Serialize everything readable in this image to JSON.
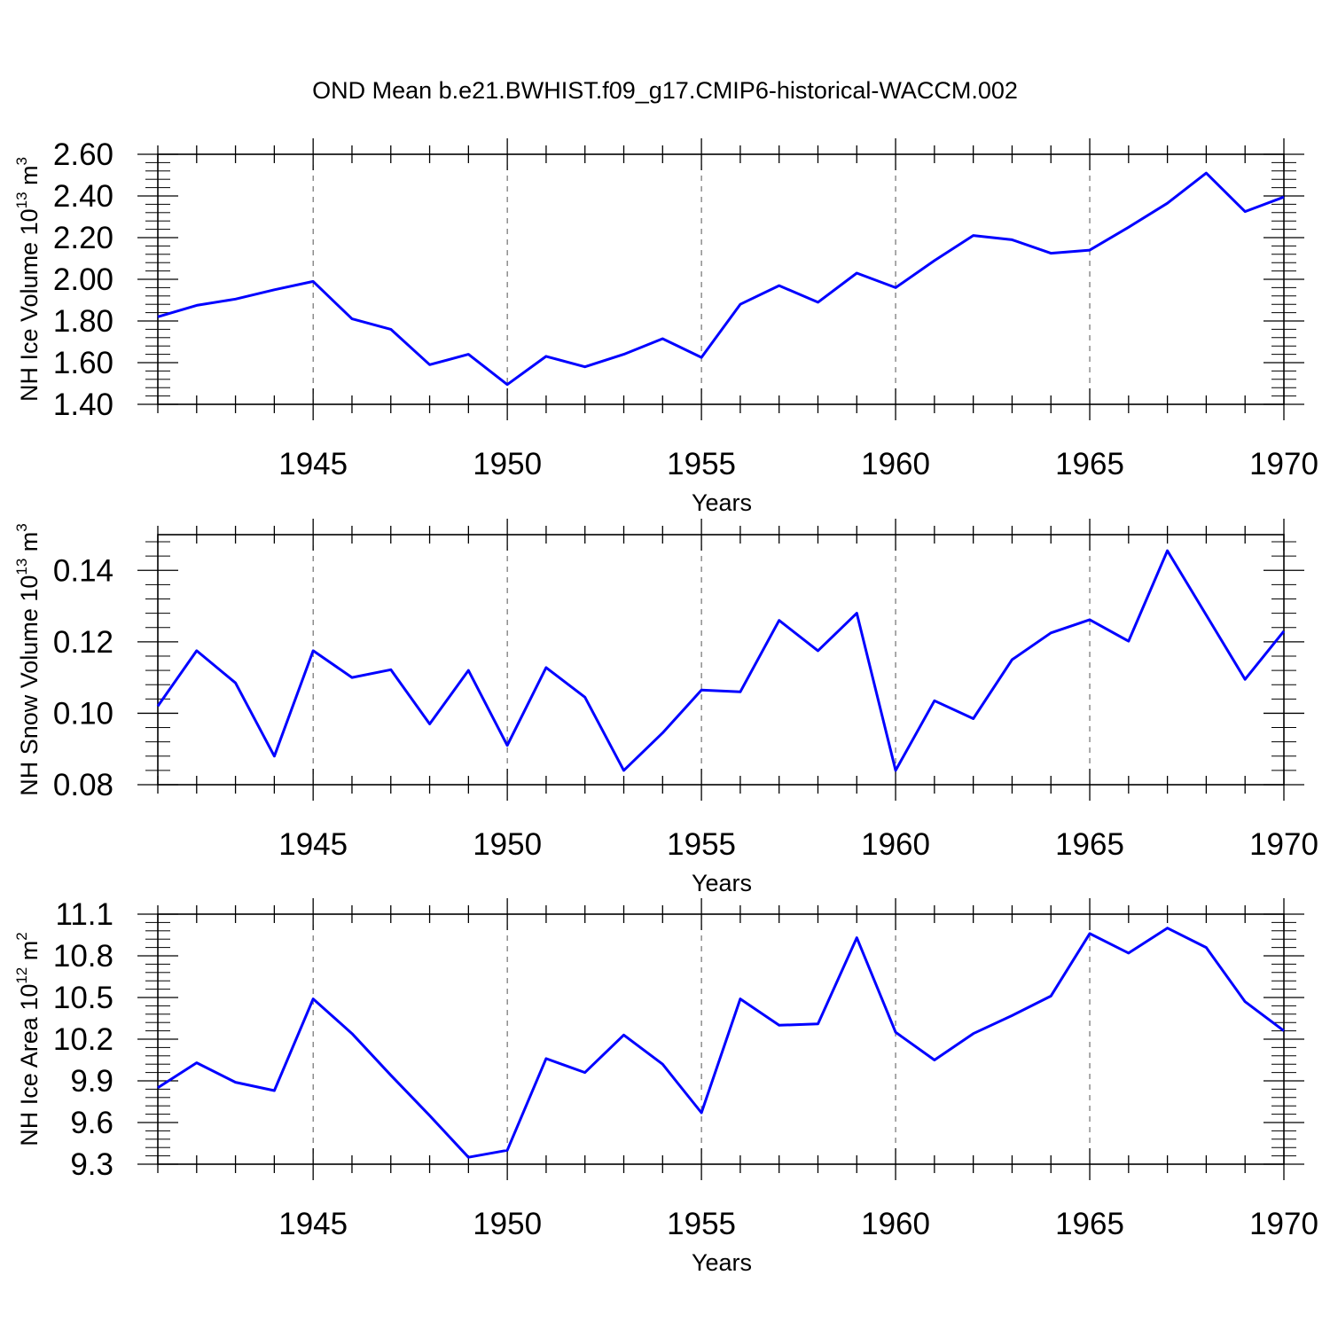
{
  "figure_title": "OND Mean b.e21.BWHIST.f09_g17.CMIP6-historical-WACCM.002",
  "colors": {
    "line": "#0000ff",
    "axis": "#000000",
    "grid": "#555555"
  },
  "chart_data": [
    {
      "type": "line",
      "title": "OND Mean b.e21.BWHIST.f09_g17.CMIP6-historical-WACCM.002",
      "xlabel": "Years",
      "ylabel": "NH Ice Volume 10",
      "ylabel_exp": "13",
      "ylabel_unit": " m",
      "ylabel_unit_exp": "3",
      "xlim": [
        1941,
        1970
      ],
      "ylim": [
        1.4,
        2.6
      ],
      "yticks": [
        1.4,
        1.6,
        1.8,
        2.0,
        2.2,
        2.4,
        2.6
      ],
      "ytick_labels": [
        "1.40",
        "1.60",
        "1.80",
        "2.00",
        "2.20",
        "2.40",
        "2.60"
      ],
      "xticks": [
        1945,
        1950,
        1955,
        1960,
        1965,
        1970
      ],
      "xtick_labels": [
        "1945",
        "1950",
        "1955",
        "1960",
        "1965",
        "1970"
      ],
      "grid": "vertical dashed at major x ticks",
      "x": [
        1941,
        1942,
        1943,
        1944,
        1945,
        1946,
        1947,
        1948,
        1949,
        1950,
        1951,
        1952,
        1953,
        1954,
        1955,
        1956,
        1957,
        1958,
        1959,
        1960,
        1961,
        1962,
        1963,
        1964,
        1965,
        1966,
        1967,
        1968,
        1969,
        1970
      ],
      "series": [
        {
          "name": "NH Ice Volume",
          "values": [
            1.82,
            1.875,
            1.905,
            1.95,
            1.99,
            1.81,
            1.76,
            1.59,
            1.64,
            1.495,
            1.63,
            1.58,
            1.64,
            1.715,
            1.625,
            1.88,
            1.97,
            1.89,
            2.03,
            1.96,
            2.09,
            2.21,
            2.19,
            2.125,
            2.14,
            2.25,
            2.365,
            2.51,
            2.325,
            2.395
          ]
        }
      ]
    },
    {
      "type": "line",
      "xlabel": "Years",
      "ylabel": "NH Snow Volume 10",
      "ylabel_exp": "13",
      "ylabel_unit": " m",
      "ylabel_unit_exp": "3",
      "xlim": [
        1941,
        1970
      ],
      "ylim": [
        0.08,
        0.15
      ],
      "yticks": [
        0.08,
        0.1,
        0.12,
        0.14
      ],
      "ytick_labels": [
        "0.08",
        "0.10",
        "0.12",
        "0.14"
      ],
      "xticks": [
        1945,
        1950,
        1955,
        1960,
        1965,
        1970
      ],
      "xtick_labels": [
        "1945",
        "1950",
        "1955",
        "1960",
        "1965",
        "1970"
      ],
      "grid": "vertical dashed at major x ticks",
      "x": [
        1941,
        1942,
        1943,
        1944,
        1945,
        1946,
        1947,
        1948,
        1949,
        1950,
        1951,
        1952,
        1953,
        1954,
        1955,
        1956,
        1957,
        1958,
        1959,
        1960,
        1961,
        1962,
        1963,
        1964,
        1965,
        1966,
        1967,
        1968,
        1969,
        1970
      ],
      "series": [
        {
          "name": "NH Snow Volume",
          "values": [
            0.102,
            0.1175,
            0.1085,
            0.088,
            0.1175,
            0.11,
            0.1122,
            0.097,
            0.112,
            0.091,
            0.1128,
            0.1045,
            0.084,
            0.0945,
            0.1065,
            0.106,
            0.126,
            0.1175,
            0.128,
            0.084,
            0.1035,
            0.0985,
            0.115,
            0.1225,
            0.1262,
            0.1202,
            0.1455,
            0.1275,
            0.1095,
            0.123
          ]
        }
      ]
    },
    {
      "type": "line",
      "xlabel": "Years",
      "ylabel": "NH Ice Area 10",
      "ylabel_exp": "12",
      "ylabel_unit": " m",
      "ylabel_unit_exp": "2",
      "xlim": [
        1941,
        1970
      ],
      "ylim": [
        9.3,
        11.1
      ],
      "yticks": [
        9.3,
        9.6,
        9.9,
        10.2,
        10.5,
        10.8,
        11.1
      ],
      "ytick_labels": [
        "9.3",
        "9.6",
        "9.9",
        "10.2",
        "10.5",
        "10.8",
        "11.1"
      ],
      "xticks": [
        1945,
        1950,
        1955,
        1960,
        1965,
        1970
      ],
      "xtick_labels": [
        "1945",
        "1950",
        "1955",
        "1960",
        "1965",
        "1970"
      ],
      "grid": "vertical dashed at major x ticks",
      "x": [
        1941,
        1942,
        1943,
        1944,
        1945,
        1946,
        1947,
        1948,
        1949,
        1950,
        1951,
        1952,
        1953,
        1954,
        1955,
        1956,
        1957,
        1958,
        1959,
        1960,
        1961,
        1962,
        1963,
        1964,
        1965,
        1966,
        1967,
        1968,
        1969,
        1970
      ],
      "series": [
        {
          "name": "NH Ice Area",
          "values": [
            9.85,
            10.03,
            9.89,
            9.83,
            10.49,
            10.24,
            9.94,
            9.65,
            9.35,
            9.4,
            10.06,
            9.96,
            10.23,
            10.02,
            9.67,
            10.49,
            10.3,
            10.31,
            10.93,
            10.25,
            10.05,
            10.24,
            10.37,
            10.51,
            10.96,
            10.82,
            11.0,
            10.86,
            10.47,
            10.26
          ]
        }
      ]
    }
  ]
}
